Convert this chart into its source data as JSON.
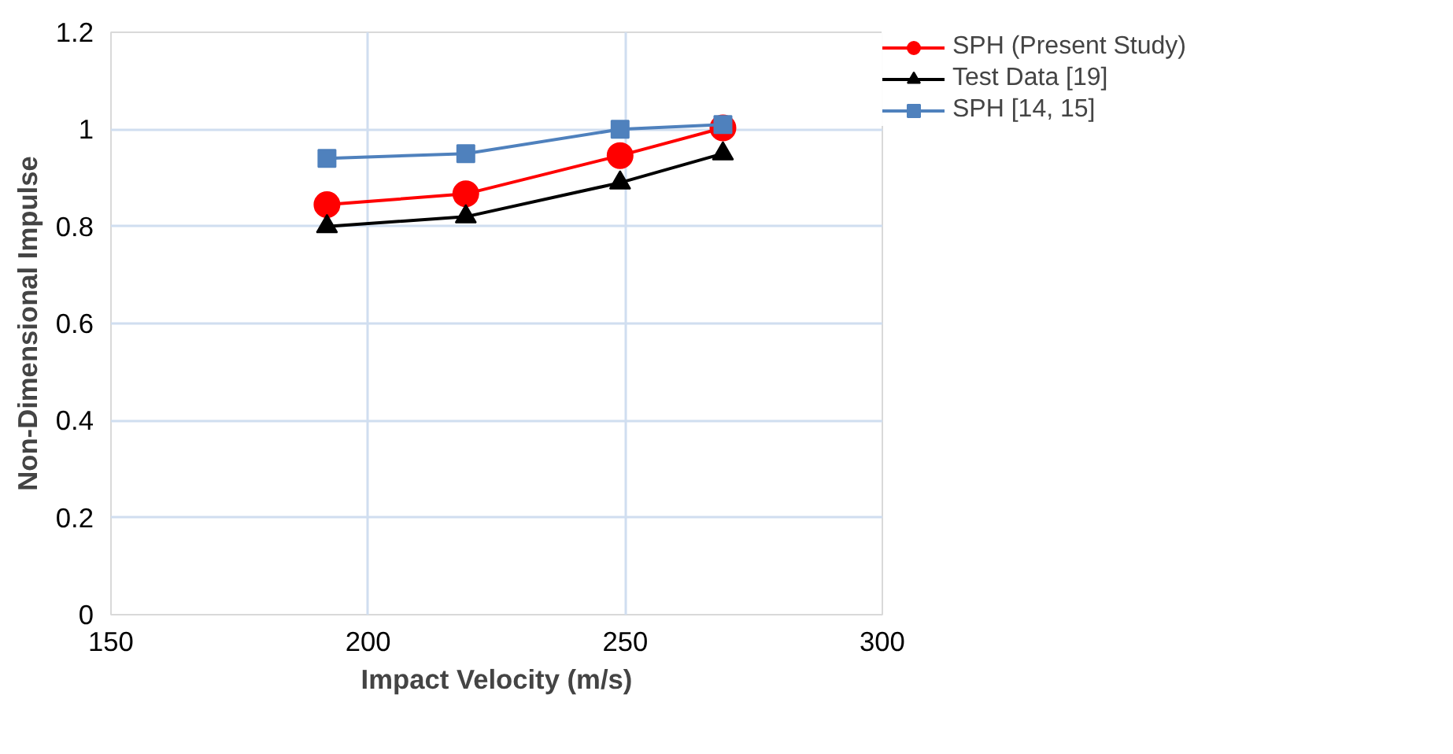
{
  "chart_data": {
    "type": "line",
    "xlabel": "Impact Velocity (m/s)",
    "ylabel": "Non-Dimensional Impulse",
    "x": [
      192,
      219,
      249,
      269
    ],
    "series": [
      {
        "name": "SPH (Present Study)",
        "color": "#ff0000",
        "marker": "circle",
        "values": [
          0.845,
          0.867,
          0.946,
          1.003
        ]
      },
      {
        "name": "Test Data [19]",
        "color": "#000000",
        "marker": "triangle",
        "values": [
          0.8,
          0.82,
          0.89,
          0.95
        ]
      },
      {
        "name": "SPH [14, 15]",
        "color": "#4f81bd",
        "marker": "square",
        "values": [
          0.94,
          0.95,
          1.0,
          1.01
        ]
      }
    ],
    "xlim": [
      150,
      300
    ],
    "xticks": [
      150,
      200,
      250,
      300
    ],
    "ylim": [
      0,
      1.2
    ],
    "yticks": [
      {
        "value": 0,
        "label": "0"
      },
      {
        "value": 0.2,
        "label": "0.2"
      },
      {
        "value": 0.4,
        "label": "0.4"
      },
      {
        "value": 0.6,
        "label": "0.6"
      },
      {
        "value": 0.8,
        "label": "0.8"
      },
      {
        "value": 1,
        "label": "1"
      },
      {
        "value": 1.2,
        "label": "1.2"
      }
    ],
    "grid": true,
    "legend": "top right"
  }
}
